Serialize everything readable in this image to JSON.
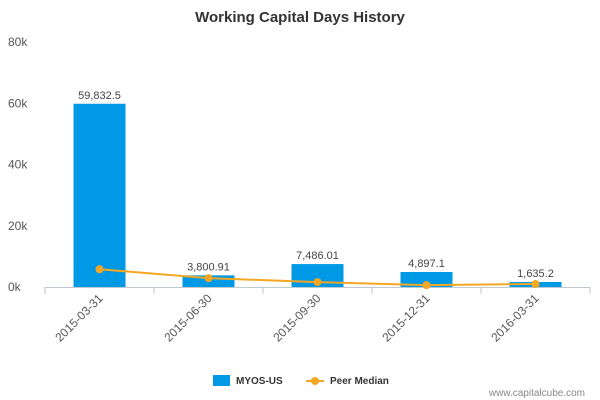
{
  "chart_data": {
    "type": "bar",
    "title": "Working Capital Days History",
    "categories": [
      "2015-03-31",
      "2015-06-30",
      "2015-09-30",
      "2015-12-31",
      "2016-03-31"
    ],
    "series": [
      {
        "name": "MYOS-US",
        "type": "bar",
        "values": [
          59832.5,
          3800.91,
          7486.01,
          4897.1,
          1635.2
        ],
        "labels": [
          "59,832.5",
          "3,800.91",
          "7,486.01",
          "4,897.1",
          "1,635.2"
        ],
        "color": "#0099e6"
      },
      {
        "name": "Peer Median",
        "type": "line",
        "values": [
          5800,
          2900,
          1600,
          600,
          1000
        ],
        "color": "#f5a623"
      }
    ],
    "y_ticks": [
      "0k",
      "20k",
      "40k",
      "60k",
      "80k"
    ],
    "ylim": [
      0,
      80000
    ],
    "xlabel": "",
    "ylabel": "",
    "grid": false,
    "legend_position": "bottom-center"
  },
  "footer": {
    "credit": "www.capitalcube.com"
  }
}
